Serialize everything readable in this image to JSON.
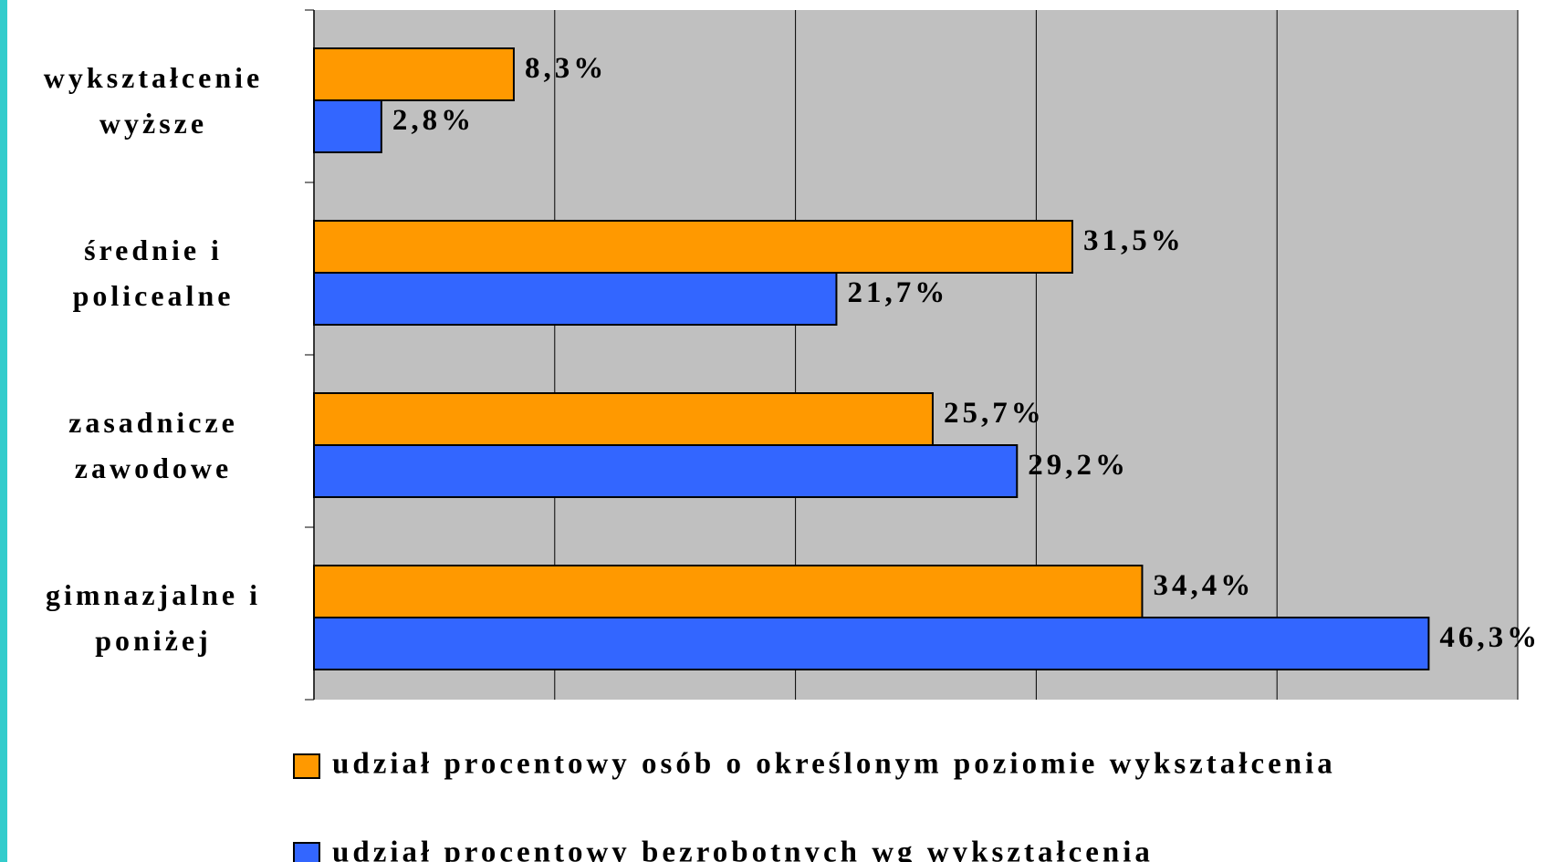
{
  "chart_data": {
    "type": "bar",
    "orientation": "horizontal",
    "categories": [
      "wykształcenie wyższe",
      "średnie i policealne",
      "zasadnicze zawodowe",
      "gimnazjalne i poniżej"
    ],
    "series": [
      {
        "name": "udział procentowy osób o określonym poziomie wykształcenia",
        "color": "#ff9900",
        "values": [
          8.3,
          31.5,
          25.7,
          34.4
        ],
        "value_labels": [
          "8,3%",
          "31,5%",
          "25,7%",
          "34,4%"
        ]
      },
      {
        "name": "udział procentowy bezrobotnych wg wykształcenia",
        "color": "#3366ff",
        "values": [
          2.8,
          21.7,
          29.2,
          46.3
        ],
        "value_labels": [
          "2,8%",
          "21,7%",
          "29,2%",
          "46,3%"
        ]
      }
    ],
    "xlim": [
      0,
      50
    ],
    "xticks": [
      0,
      10,
      20,
      30,
      40,
      50
    ],
    "grid": true
  }
}
